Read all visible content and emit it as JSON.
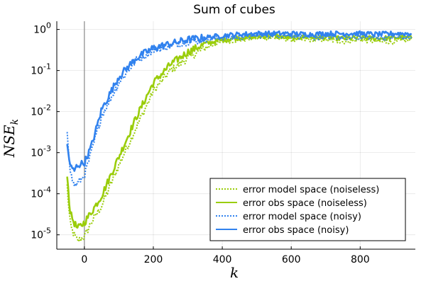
{
  "chart_data": {
    "type": "line",
    "title": "Sum of cubes",
    "xlabel": "k",
    "ylabel": {
      "base": "NSE",
      "subscript": "k"
    },
    "xlim": [
      -80,
      960
    ],
    "ylim_log10": [
      -5.35,
      0.2
    ],
    "x_ticks": [
      0,
      200,
      400,
      600,
      800
    ],
    "y_ticks": [
      {
        "exp": -5,
        "base": "10",
        "sup": "-5"
      },
      {
        "exp": -4,
        "base": "10",
        "sup": "-4"
      },
      {
        "exp": -3,
        "base": "10",
        "sup": "-3"
      },
      {
        "exp": -2,
        "base": "10",
        "sup": "-2"
      },
      {
        "exp": -1,
        "base": "10",
        "sup": "-1"
      },
      {
        "exp": 0,
        "base": "10",
        "sup": "0"
      }
    ],
    "vline_x": 0,
    "grid": true,
    "legend_position": "bottom-right",
    "x_knots": [
      -50,
      -45,
      -40,
      -30,
      -20,
      0,
      20,
      50,
      100,
      150,
      200,
      250,
      300,
      350,
      400,
      450,
      500,
      550,
      600,
      650,
      700,
      750,
      800,
      850,
      900,
      950
    ],
    "series": [
      {
        "name": "error model space (noiseless)",
        "color": "#9acd0a",
        "dash": "dotted",
        "log10_values": [
          -3.8,
          -4.4,
          -4.8,
          -5.0,
          -5.15,
          -5.05,
          -4.7,
          -4.3,
          -3.3,
          -2.4,
          -1.5,
          -1.0,
          -0.7,
          -0.45,
          -0.3,
          -0.25,
          -0.2,
          -0.2,
          -0.25,
          -0.25,
          -0.25,
          -0.3,
          -0.25,
          -0.3,
          -0.3,
          -0.25
        ]
      },
      {
        "name": "error obs space (noiseless)",
        "color": "#9acd0a",
        "dash": "solid",
        "log10_values": [
          -3.5,
          -4.1,
          -4.5,
          -4.7,
          -4.85,
          -4.7,
          -4.45,
          -4.05,
          -3.1,
          -2.15,
          -1.3,
          -0.85,
          -0.55,
          -0.35,
          -0.25,
          -0.2,
          -0.18,
          -0.15,
          -0.2,
          -0.18,
          -0.2,
          -0.22,
          -0.2,
          -0.22,
          -0.2,
          -0.2
        ]
      },
      {
        "name": "error model space (noisy)",
        "color": "#3182ee",
        "dash": "dotted",
        "log10_values": [
          -2.45,
          -3.0,
          -3.5,
          -3.8,
          -3.75,
          -3.55,
          -3.0,
          -2.1,
          -1.3,
          -0.75,
          -0.5,
          -0.4,
          -0.3,
          -0.25,
          -0.2,
          -0.2,
          -0.15,
          -0.15,
          -0.15,
          -0.2,
          -0.2,
          -0.2,
          -0.2,
          -0.2,
          -0.2,
          -0.2
        ]
      },
      {
        "name": "error obs space (noisy)",
        "color": "#3182ee",
        "dash": "solid",
        "log10_values": [
          -2.8,
          -3.1,
          -3.35,
          -3.45,
          -3.3,
          -3.25,
          -2.85,
          -1.95,
          -1.15,
          -0.7,
          -0.45,
          -0.35,
          -0.25,
          -0.2,
          -0.15,
          -0.12,
          -0.1,
          -0.1,
          -0.1,
          -0.12,
          -0.1,
          -0.1,
          -0.1,
          -0.12,
          -0.1,
          -0.1
        ]
      }
    ]
  }
}
